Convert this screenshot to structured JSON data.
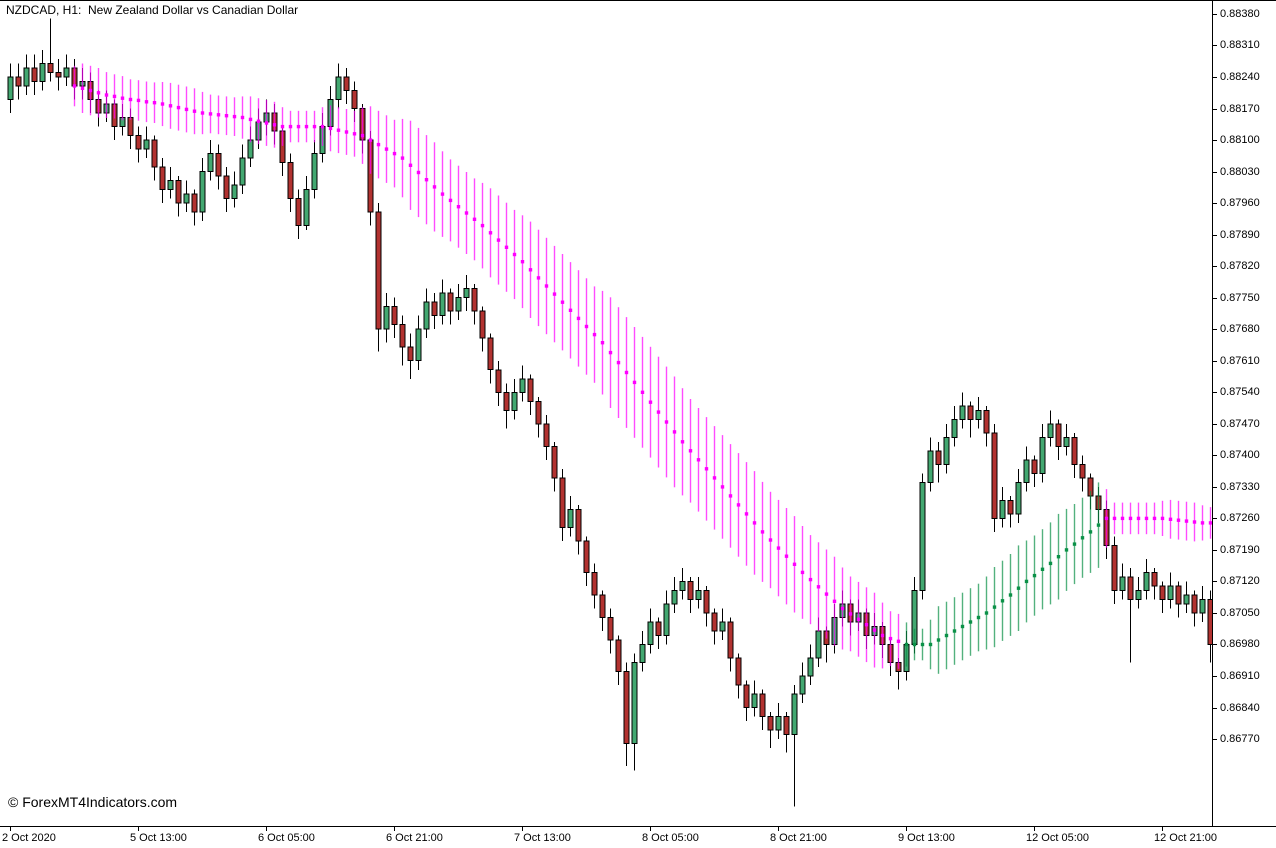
{
  "header": {
    "symbol_label": "NZDCAD, H1:  New Zealand Dollar vs Canadian Dollar"
  },
  "watermark": {
    "text": "© ForexMT4Indicators.com"
  },
  "colors": {
    "background": "#FFFFFF",
    "frame": "#000000",
    "wick": "#000000",
    "up": "#43A871",
    "down": "#B23230",
    "indicator_down": "#FF00FF",
    "indicator_up": "#0B9148",
    "axis_text": "#000000"
  },
  "chart_data": {
    "type": "candlestick",
    "symbol": "NZDCAD",
    "timeframe": "H1",
    "title": "NZDCAD, H1:  New Zealand Dollar vs Canadian Dollar",
    "ylim": [
      0.86577,
      0.88411
    ],
    "grid": false,
    "price_ticks": [
      "0.88380",
      "0.88310",
      "0.88240",
      "0.88170",
      "0.88100",
      "0.88030",
      "0.87960",
      "0.87890",
      "0.87820",
      "0.87750",
      "0.87680",
      "0.87610",
      "0.87540",
      "0.87470",
      "0.87400",
      "0.87330",
      "0.87260",
      "0.87190",
      "0.87120",
      "0.87050",
      "0.86980",
      "0.86910",
      "0.86840",
      "0.86770"
    ],
    "time_ticks": [
      {
        "label": "2 Oct 2020",
        "index": 0
      },
      {
        "label": "5 Oct 13:00",
        "index": 16
      },
      {
        "label": "6 Oct 05:00",
        "index": 32
      },
      {
        "label": "6 Oct 21:00",
        "index": 48
      },
      {
        "label": "7 Oct 13:00",
        "index": 64
      },
      {
        "label": "8 Oct 05:00",
        "index": 80
      },
      {
        "label": "8 Oct 21:00",
        "index": 96
      },
      {
        "label": "9 Oct 13:00",
        "index": 112
      },
      {
        "label": "12 Oct 05:00",
        "index": 128
      },
      {
        "label": "12 Oct 21:00",
        "index": 144
      }
    ],
    "candles": [
      [
        0.8819,
        0.8827,
        0.8816,
        0.8824
      ],
      [
        0.8824,
        0.8827,
        0.8819,
        0.8822
      ],
      [
        0.8822,
        0.8829,
        0.882,
        0.8826
      ],
      [
        0.8826,
        0.8829,
        0.882,
        0.8823
      ],
      [
        0.8823,
        0.883,
        0.8821,
        0.8827
      ],
      [
        0.8827,
        0.8837,
        0.8823,
        0.8825
      ],
      [
        0.8825,
        0.8828,
        0.8821,
        0.8824
      ],
      [
        0.8824,
        0.8829,
        0.8822,
        0.8826
      ],
      [
        0.8826,
        0.8828,
        0.8819,
        0.8822
      ],
      [
        0.8822,
        0.8826,
        0.8819,
        0.8823
      ],
      [
        0.8823,
        0.8825,
        0.8816,
        0.8819
      ],
      [
        0.8819,
        0.8821,
        0.8813,
        0.8816
      ],
      [
        0.8816,
        0.8821,
        0.8814,
        0.8818
      ],
      [
        0.8818,
        0.8819,
        0.881,
        0.8813
      ],
      [
        0.8813,
        0.8818,
        0.8811,
        0.8815
      ],
      [
        0.8815,
        0.8817,
        0.8808,
        0.8811
      ],
      [
        0.8811,
        0.8813,
        0.8805,
        0.8808
      ],
      [
        0.8808,
        0.8813,
        0.8806,
        0.881
      ],
      [
        0.881,
        0.8811,
        0.8801,
        0.8804
      ],
      [
        0.8804,
        0.8806,
        0.8796,
        0.8799
      ],
      [
        0.8799,
        0.8804,
        0.8797,
        0.8801
      ],
      [
        0.8801,
        0.8802,
        0.8793,
        0.8796
      ],
      [
        0.8796,
        0.8801,
        0.8794,
        0.8798
      ],
      [
        0.8798,
        0.8799,
        0.8791,
        0.8794
      ],
      [
        0.8794,
        0.8806,
        0.8792,
        0.8803
      ],
      [
        0.8803,
        0.881,
        0.8801,
        0.8807
      ],
      [
        0.8807,
        0.8809,
        0.8799,
        0.8802
      ],
      [
        0.8802,
        0.8804,
        0.8794,
        0.8797
      ],
      [
        0.8797,
        0.8803,
        0.8795,
        0.88
      ],
      [
        0.88,
        0.8809,
        0.8798,
        0.8806
      ],
      [
        0.8806,
        0.8813,
        0.8804,
        0.881
      ],
      [
        0.881,
        0.8817,
        0.8808,
        0.8814
      ],
      [
        0.8814,
        0.8819,
        0.8811,
        0.8816
      ],
      [
        0.8816,
        0.8818,
        0.8809,
        0.8812
      ],
      [
        0.8812,
        0.8813,
        0.8802,
        0.8805
      ],
      [
        0.8805,
        0.8807,
        0.8794,
        0.8797
      ],
      [
        0.8797,
        0.8799,
        0.8788,
        0.8791
      ],
      [
        0.8791,
        0.8802,
        0.879,
        0.8799
      ],
      [
        0.8799,
        0.881,
        0.8797,
        0.8807
      ],
      [
        0.8807,
        0.8816,
        0.8805,
        0.8813
      ],
      [
        0.8813,
        0.8822,
        0.8811,
        0.8819
      ],
      [
        0.8819,
        0.8827,
        0.8817,
        0.8824
      ],
      [
        0.8824,
        0.8826,
        0.8818,
        0.8821
      ],
      [
        0.8821,
        0.8823,
        0.8814,
        0.8817
      ],
      [
        0.8817,
        0.8818,
        0.8807,
        0.881
      ],
      [
        0.881,
        0.8812,
        0.8791,
        0.8794
      ],
      [
        0.8794,
        0.8796,
        0.8763,
        0.8768
      ],
      [
        0.8768,
        0.8776,
        0.8765,
        0.8773
      ],
      [
        0.8773,
        0.8775,
        0.8766,
        0.8769
      ],
      [
        0.8769,
        0.8771,
        0.876,
        0.8764
      ],
      [
        0.8764,
        0.8767,
        0.8757,
        0.8761
      ],
      [
        0.8761,
        0.8771,
        0.8759,
        0.8768
      ],
      [
        0.8768,
        0.8777,
        0.8766,
        0.8774
      ],
      [
        0.8774,
        0.8776,
        0.8768,
        0.8771
      ],
      [
        0.8771,
        0.8779,
        0.8769,
        0.8776
      ],
      [
        0.8776,
        0.8777,
        0.8769,
        0.8772
      ],
      [
        0.8772,
        0.8778,
        0.877,
        0.8775
      ],
      [
        0.8775,
        0.878,
        0.8772,
        0.8777
      ],
      [
        0.8777,
        0.8778,
        0.8769,
        0.8772
      ],
      [
        0.8772,
        0.8773,
        0.8763,
        0.8766
      ],
      [
        0.8766,
        0.8767,
        0.8756,
        0.8759
      ],
      [
        0.8759,
        0.8761,
        0.8751,
        0.8754
      ],
      [
        0.8754,
        0.8756,
        0.8746,
        0.875
      ],
      [
        0.875,
        0.8757,
        0.8748,
        0.8754
      ],
      [
        0.8754,
        0.876,
        0.8752,
        0.8757
      ],
      [
        0.8757,
        0.8758,
        0.8749,
        0.8752
      ],
      [
        0.8752,
        0.8753,
        0.8744,
        0.8747
      ],
      [
        0.8747,
        0.8749,
        0.8739,
        0.8742
      ],
      [
        0.8742,
        0.8743,
        0.8732,
        0.8735
      ],
      [
        0.8735,
        0.8737,
        0.8721,
        0.8724
      ],
      [
        0.8724,
        0.8731,
        0.8722,
        0.8728
      ],
      [
        0.8728,
        0.8729,
        0.8718,
        0.8721
      ],
      [
        0.8721,
        0.8722,
        0.8711,
        0.8714
      ],
      [
        0.8714,
        0.8716,
        0.8706,
        0.8709
      ],
      [
        0.8709,
        0.871,
        0.8701,
        0.8704
      ],
      [
        0.8704,
        0.8706,
        0.8696,
        0.8699
      ],
      [
        0.8699,
        0.87,
        0.8689,
        0.8692
      ],
      [
        0.8692,
        0.8694,
        0.8671,
        0.8676
      ],
      [
        0.8676,
        0.8696,
        0.867,
        0.8694
      ],
      [
        0.8694,
        0.8701,
        0.8692,
        0.8698
      ],
      [
        0.8698,
        0.8706,
        0.8696,
        0.8703
      ],
      [
        0.8703,
        0.8704,
        0.8697,
        0.87
      ],
      [
        0.87,
        0.871,
        0.8698,
        0.8707
      ],
      [
        0.8707,
        0.8713,
        0.8705,
        0.871
      ],
      [
        0.871,
        0.8715,
        0.8708,
        0.8712
      ],
      [
        0.8712,
        0.8713,
        0.8705,
        0.8708
      ],
      [
        0.8708,
        0.8713,
        0.8706,
        0.871
      ],
      [
        0.871,
        0.8711,
        0.8702,
        0.8705
      ],
      [
        0.8705,
        0.8706,
        0.8698,
        0.8701
      ],
      [
        0.8701,
        0.8706,
        0.8699,
        0.8703
      ],
      [
        0.8703,
        0.8704,
        0.8692,
        0.8695
      ],
      [
        0.8695,
        0.8696,
        0.8686,
        0.8689
      ],
      [
        0.8689,
        0.869,
        0.8681,
        0.8684
      ],
      [
        0.8684,
        0.869,
        0.8682,
        0.8687
      ],
      [
        0.8687,
        0.8688,
        0.8679,
        0.8682
      ],
      [
        0.8682,
        0.8683,
        0.8675,
        0.8679
      ],
      [
        0.8679,
        0.8685,
        0.8677,
        0.8682
      ],
      [
        0.8682,
        0.8683,
        0.8674,
        0.8678
      ],
      [
        0.8678,
        0.8689,
        0.8662,
        0.8687
      ],
      [
        0.8687,
        0.8694,
        0.8685,
        0.8691
      ],
      [
        0.8691,
        0.8698,
        0.8689,
        0.8695
      ],
      [
        0.8695,
        0.8704,
        0.8693,
        0.8701
      ],
      [
        0.8701,
        0.8702,
        0.8694,
        0.8698
      ],
      [
        0.8698,
        0.8707,
        0.8696,
        0.8704
      ],
      [
        0.8704,
        0.871,
        0.8702,
        0.8707
      ],
      [
        0.8707,
        0.8708,
        0.87,
        0.8703
      ],
      [
        0.8703,
        0.8708,
        0.8701,
        0.8705
      ],
      [
        0.8705,
        0.8706,
        0.8697,
        0.87
      ],
      [
        0.87,
        0.8705,
        0.8698,
        0.8702
      ],
      [
        0.8702,
        0.8703,
        0.8695,
        0.8698
      ],
      [
        0.8698,
        0.8699,
        0.8691,
        0.8694
      ],
      [
        0.8694,
        0.8695,
        0.8688,
        0.8692
      ],
      [
        0.8692,
        0.8701,
        0.869,
        0.8698
      ],
      [
        0.8698,
        0.8713,
        0.8696,
        0.871
      ],
      [
        0.871,
        0.8736,
        0.8708,
        0.8734
      ],
      [
        0.8734,
        0.8744,
        0.8732,
        0.8741
      ],
      [
        0.8741,
        0.8743,
        0.8734,
        0.8738
      ],
      [
        0.8738,
        0.8747,
        0.8736,
        0.8744
      ],
      [
        0.8744,
        0.8751,
        0.8742,
        0.8748
      ],
      [
        0.8748,
        0.8754,
        0.8746,
        0.8751
      ],
      [
        0.8751,
        0.8752,
        0.8744,
        0.8748
      ],
      [
        0.8748,
        0.8753,
        0.8746,
        0.875
      ],
      [
        0.875,
        0.8751,
        0.8742,
        0.8745
      ],
      [
        0.8745,
        0.8747,
        0.8723,
        0.8726
      ],
      [
        0.8726,
        0.8733,
        0.8724,
        0.873
      ],
      [
        0.873,
        0.8731,
        0.8724,
        0.8727
      ],
      [
        0.8727,
        0.8737,
        0.8725,
        0.8734
      ],
      [
        0.8734,
        0.8742,
        0.8732,
        0.8739
      ],
      [
        0.8739,
        0.874,
        0.8733,
        0.8736
      ],
      [
        0.8736,
        0.8747,
        0.8734,
        0.8744
      ],
      [
        0.8744,
        0.875,
        0.8742,
        0.8747
      ],
      [
        0.8747,
        0.8748,
        0.8739,
        0.8742
      ],
      [
        0.8742,
        0.8747,
        0.874,
        0.8744
      ],
      [
        0.8744,
        0.8745,
        0.8735,
        0.8738
      ],
      [
        0.8738,
        0.874,
        0.8732,
        0.8735
      ],
      [
        0.8735,
        0.8736,
        0.8728,
        0.8731
      ],
      [
        0.8731,
        0.8733,
        0.8725,
        0.8728
      ],
      [
        0.8728,
        0.873,
        0.8717,
        0.872
      ],
      [
        0.872,
        0.8722,
        0.8707,
        0.871
      ],
      [
        0.871,
        0.8716,
        0.8708,
        0.8713
      ],
      [
        0.8713,
        0.8715,
        0.8694,
        0.8708
      ],
      [
        0.8708,
        0.8713,
        0.8706,
        0.871
      ],
      [
        0.871,
        0.8717,
        0.8708,
        0.8714
      ],
      [
        0.8714,
        0.8715,
        0.8708,
        0.8711
      ],
      [
        0.8711,
        0.8712,
        0.8705,
        0.8708
      ],
      [
        0.8708,
        0.8714,
        0.8706,
        0.8711
      ],
      [
        0.8711,
        0.8712,
        0.8704,
        0.8707
      ],
      [
        0.8707,
        0.8712,
        0.8705,
        0.8709
      ],
      [
        0.8709,
        0.871,
        0.8702,
        0.8705
      ],
      [
        0.8705,
        0.8711,
        0.8703,
        0.8708
      ],
      [
        0.8708,
        0.871,
        0.8694,
        0.8698
      ]
    ],
    "indicator": {
      "name": "trend-ribbon-moving-average",
      "start_index": 8,
      "bar_half_base": 0.00035,
      "bar_slope_mult": 4,
      "segments": [
        {
          "from": 8,
          "to": 111,
          "state": "down"
        },
        {
          "from": 112,
          "to": 136,
          "state": "up"
        },
        {
          "from": 137,
          "to": 150,
          "state": "down"
        }
      ],
      "values": [
        0.8822,
        0.88215,
        0.8821,
        0.88205,
        0.882,
        0.88197,
        0.88193,
        0.8819,
        0.88188,
        0.88185,
        0.88183,
        0.8818,
        0.88176,
        0.88172,
        0.88168,
        0.88164,
        0.8816,
        0.88158,
        0.88156,
        0.88154,
        0.88152,
        0.8815,
        0.88146,
        0.88142,
        0.88138,
        0.88134,
        0.8813,
        0.8813,
        0.8813,
        0.8813,
        0.8813,
        0.8813,
        0.88126,
        0.88122,
        0.88118,
        0.88114,
        0.8811,
        0.881,
        0.8809,
        0.8808,
        0.8807,
        0.8806,
        0.88044,
        0.88028,
        0.88012,
        0.87996,
        0.8798,
        0.87966,
        0.87952,
        0.87938,
        0.87924,
        0.8791,
        0.87894,
        0.87878,
        0.87862,
        0.87846,
        0.8783,
        0.87812,
        0.87794,
        0.87776,
        0.87758,
        0.8774,
        0.87722,
        0.87704,
        0.87686,
        0.87668,
        0.8765,
        0.87628,
        0.87606,
        0.87584,
        0.87562,
        0.8754,
        0.87518,
        0.87496,
        0.87474,
        0.87452,
        0.8743,
        0.8741,
        0.8739,
        0.8737,
        0.8735,
        0.8733,
        0.8731,
        0.8729,
        0.8727,
        0.8725,
        0.8723,
        0.87212,
        0.87194,
        0.87176,
        0.87158,
        0.8714,
        0.87124,
        0.87108,
        0.87092,
        0.87076,
        0.8706,
        0.87048,
        0.87036,
        0.87024,
        0.87012,
        0.87,
        0.86993,
        0.86987,
        0.8698,
        0.8698,
        0.8698,
        0.8698,
        0.8699,
        0.87,
        0.8701,
        0.8702,
        0.8703,
        0.8704,
        0.8705,
        0.87063,
        0.87077,
        0.8709,
        0.87105,
        0.8712,
        0.87133,
        0.87147,
        0.8716,
        0.87175,
        0.8719,
        0.87203,
        0.87217,
        0.8723,
        0.87245,
        0.8726,
        0.8726,
        0.8726,
        0.8726,
        0.8726,
        0.8726,
        0.8726,
        0.8726,
        0.87258,
        0.87256,
        0.87254,
        0.87252,
        0.8725,
        0.8725
      ]
    }
  }
}
